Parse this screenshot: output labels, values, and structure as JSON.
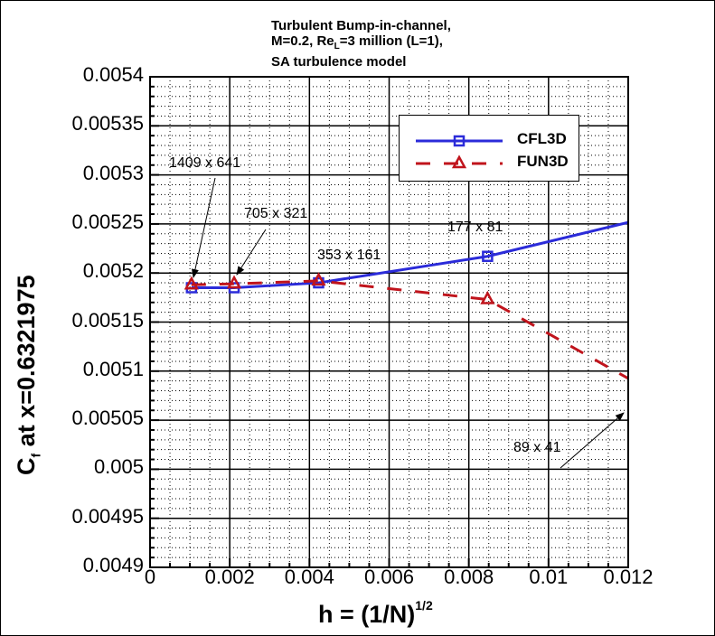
{
  "chart_data": {
    "type": "line",
    "title": "Turbulent Bump-in-channel, M=0.2, Re_L=3 million (L=1), SA turbulence model",
    "title_lines": [
      "Turbulent Bump-in-channel,",
      "M=0.2, Re",
      "L",
      "=3 million (L=1),",
      "SA turbulence model"
    ],
    "xlabel": "h = (1/N)^1/2",
    "xlabel_main": "h = (1/N)",
    "xlabel_sup": "1/2",
    "ylabel": "Cf at x=0.6321975",
    "ylabel_main": "C",
    "ylabel_sub": "f",
    "ylabel_rest": " at x=0.6321975",
    "xlim": [
      0,
      0.012
    ],
    "ylim": [
      0.0049,
      0.0054
    ],
    "grid": true,
    "legend_position": "upper right",
    "x_ticks": [
      "0",
      "0.002",
      "0.004",
      "0.006",
      "0.008",
      "0.01",
      "0.012"
    ],
    "y_ticks": [
      "0.0054",
      "0.00535",
      "0.0053",
      "0.00525",
      "0.0052",
      "0.00515",
      "0.0051",
      "0.00505",
      "0.005",
      "0.00495",
      "0.0049"
    ],
    "series": [
      {
        "name": "CFL3D",
        "color": "#2b2bd9",
        "line_style": "solid",
        "marker": "square",
        "x": [
          0.00104,
          0.00211,
          0.00423,
          0.00847,
          0.01694
        ],
        "y": [
          0.005185,
          0.005185,
          0.00519,
          0.005217,
          0.0053
        ]
      },
      {
        "name": "FUN3D",
        "color": "#c0141c",
        "line_style": "dashed",
        "marker": "triangle",
        "x": [
          0.00104,
          0.00211,
          0.00423,
          0.00847,
          0.01694
        ],
        "y": [
          0.005188,
          0.005189,
          0.005192,
          0.005173,
          0.00498
        ]
      }
    ],
    "annotations": [
      {
        "text": "1409 x 641",
        "x": 0.00104
      },
      {
        "text": "705 x 321",
        "x": 0.00211
      },
      {
        "text": "353 x 161",
        "x": 0.00423
      },
      {
        "text": "177 x 81",
        "x": 0.00847
      },
      {
        "text": "89 x 41",
        "x": 0.01694
      }
    ]
  }
}
